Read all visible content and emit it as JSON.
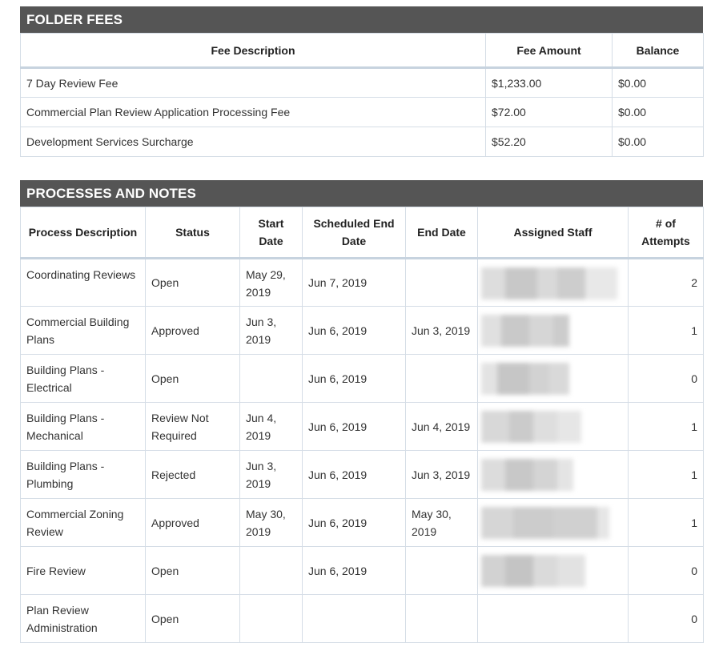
{
  "folder_fees": {
    "title": "FOLDER FEES",
    "columns": [
      "Fee Description",
      "Fee Amount",
      "Balance"
    ],
    "rows": [
      {
        "description": "7 Day Review Fee",
        "amount": "$1,233.00",
        "balance": "$0.00"
      },
      {
        "description": "Commercial Plan Review Application Processing Fee",
        "amount": "$72.00",
        "balance": "$0.00"
      },
      {
        "description": "Development Services Surcharge",
        "amount": "$52.20",
        "balance": "$0.00"
      }
    ]
  },
  "processes": {
    "title": "PROCESSES AND NOTES",
    "columns": [
      "Process Description",
      "Status",
      "Start Date",
      "Scheduled End Date",
      "End Date",
      "Assigned Staff",
      "# of Attempts"
    ],
    "rows": [
      {
        "description": "Coordinating Reviews",
        "status": "Open",
        "start": "May 29, 2019",
        "scheduled_end": "Jun 7, 2019",
        "end": "",
        "attempts": "2"
      },
      {
        "description": "Commercial Building Plans",
        "status": "Approved",
        "start": "Jun 3, 2019",
        "scheduled_end": "Jun 6, 2019",
        "end": "Jun 3, 2019",
        "attempts": "1"
      },
      {
        "description": "Building Plans - Electrical",
        "status": "Open",
        "start": "",
        "scheduled_end": "Jun 6, 2019",
        "end": "",
        "attempts": "0"
      },
      {
        "description": "Building Plans - Mechanical",
        "status": "Review Not Required",
        "start": "Jun 4, 2019",
        "scheduled_end": "Jun 6, 2019",
        "end": "Jun 4, 2019",
        "attempts": "1"
      },
      {
        "description": "Building Plans - Plumbing",
        "status": "Rejected",
        "start": "Jun 3, 2019",
        "scheduled_end": "Jun 6, 2019",
        "end": "Jun 3, 2019",
        "attempts": "1"
      },
      {
        "description": "Commercial Zoning Review",
        "status": "Approved",
        "start": "May 30, 2019",
        "scheduled_end": "Jun 6, 2019",
        "end": "May 30, 2019",
        "attempts": "1"
      },
      {
        "description": "Fire Review",
        "status": "Open",
        "start": "",
        "scheduled_end": "Jun 6, 2019",
        "end": "",
        "attempts": "0"
      },
      {
        "description": "Plan Review Administration",
        "status": "Open",
        "start": "",
        "scheduled_end": "",
        "end": "",
        "attempts": "0"
      }
    ]
  },
  "colors": {
    "header_bg": "#555555",
    "border": "#d5dde6",
    "redacted": "#cfcfcf"
  }
}
